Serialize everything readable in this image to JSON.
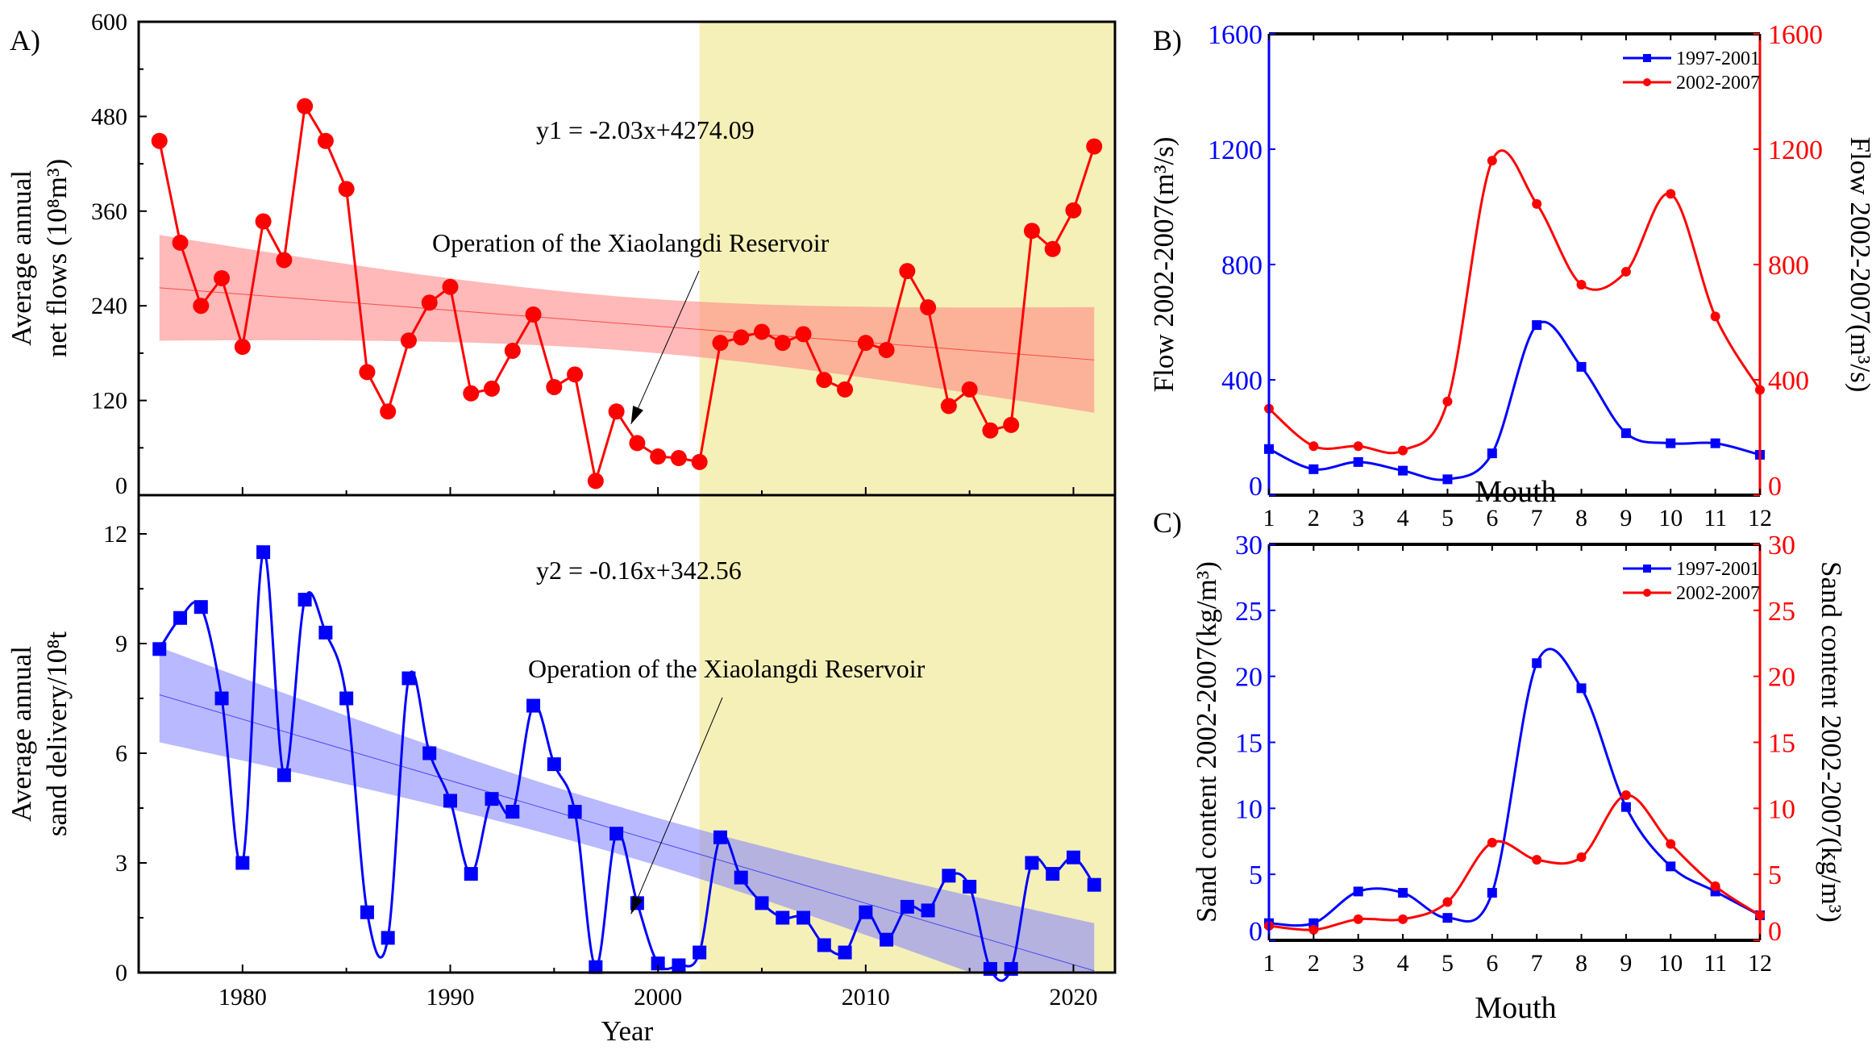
{
  "chart_data": [
    {
      "panel_label": "A)",
      "type": "line",
      "title": "",
      "xlabel": "Year",
      "ylabel": [
        "Average annual",
        "net flows (10⁸m³)"
      ],
      "x": [
        1976,
        1977,
        1978,
        1979,
        1980,
        1981,
        1982,
        1983,
        1984,
        1985,
        1986,
        1987,
        1988,
        1989,
        1990,
        1991,
        1992,
        1993,
        1994,
        1995,
        1996,
        1997,
        1998,
        1999,
        2000,
        2001,
        2002,
        2003,
        2004,
        2005,
        2006,
        2007,
        2008,
        2009,
        2010,
        2011,
        2012,
        2013,
        2014,
        2015,
        2016,
        2017,
        2018,
        2019,
        2020,
        2021
      ],
      "values": [
        449,
        320,
        240,
        275,
        188,
        347,
        298,
        493,
        449,
        388,
        156,
        106,
        196,
        244,
        264,
        129,
        135,
        183,
        229,
        137,
        153,
        18,
        106,
        66,
        49,
        47,
        42,
        193,
        200,
        207,
        193,
        204,
        146,
        134,
        193,
        184,
        284,
        238,
        113,
        134,
        82,
        89,
        335,
        312,
        361,
        442
      ],
      "series_color": "#ff0000",
      "xlim": [
        1975,
        2022
      ],
      "ylim": [
        0,
        600
      ],
      "yticks": [
        0,
        120,
        240,
        360,
        480,
        600
      ],
      "xticks": [
        1980,
        1990,
        2000,
        2010,
        2020
      ],
      "equation": "y1 = -2.03x+4274.09",
      "trend_fit": {
        "x": [
          1976,
          2021
        ],
        "y": [
          262.8,
          171.4
        ]
      },
      "confidence_band_halfwidth": {
        "ends": 67,
        "center": 34
      },
      "band_color": "#ff8080",
      "highlight_period": {
        "from": 2002,
        "to": 2022,
        "color": "#f5f0b8"
      },
      "annotation": "Operation of the Xiaolangdi Reservoir",
      "annotation_target": {
        "x": 1998.7,
        "y": 90
      }
    },
    {
      "type": "line",
      "title": "",
      "xlabel": "Year",
      "xticklabels": [
        "1980",
        "1990",
        "2000",
        "2010",
        "2020"
      ],
      "ylabel": [
        "Average annual",
        "sand delivery/10⁸t"
      ],
      "x": [
        1976,
        1977,
        1978,
        1979,
        1980,
        1981,
        1982,
        1983,
        1984,
        1985,
        1986,
        1987,
        1988,
        1989,
        1990,
        1991,
        1992,
        1993,
        1994,
        1995,
        1996,
        1997,
        1998,
        1999,
        2000,
        2001,
        2002,
        2003,
        2004,
        2005,
        2006,
        2007,
        2008,
        2009,
        2010,
        2011,
        2012,
        2013,
        2014,
        2015,
        2016,
        2017,
        2018,
        2019,
        2020,
        2021
      ],
      "values": [
        8.85,
        9.7,
        10.0,
        7.5,
        3.0,
        11.5,
        5.4,
        10.2,
        9.3,
        7.5,
        1.65,
        0.95,
        8.05,
        6.0,
        4.7,
        2.7,
        4.75,
        4.4,
        7.3,
        5.7,
        4.4,
        0.15,
        3.8,
        1.9,
        0.25,
        0.2,
        0.55,
        3.7,
        2.6,
        1.9,
        1.5,
        1.5,
        0.75,
        0.55,
        1.65,
        0.9,
        1.8,
        1.7,
        2.65,
        2.35,
        0.1,
        0.1,
        3.0,
        2.7,
        3.15,
        2.4
      ],
      "series_color": "#0000ff",
      "xlim": [
        1975,
        2022
      ],
      "ylim": [
        0,
        12
      ],
      "yticks": [
        0,
        3,
        6,
        9,
        12
      ],
      "xticks": [
        1980,
        1990,
        2000,
        2010,
        2020
      ],
      "equation": "y2 = -0.16x+342.56",
      "trend_fit": {
        "x": [
          1976,
          2021
        ],
        "y": [
          7.6,
          0.05
        ]
      },
      "confidence_band_halfwidth": {
        "ends": 1.3,
        "center": 0.65
      },
      "band_color": "#8080ff",
      "highlight_period": {
        "from": 2002,
        "to": 2022,
        "color": "#f5f0b8"
      },
      "annotation": "Operation of the Xiaolangdi Reservoir",
      "annotation_target": {
        "x": 1998.7,
        "y": 1.6
      }
    },
    {
      "panel_label": "B)",
      "type": "line",
      "xlabel": "Mouth",
      "ylabel_left": "Flow 2002-2007(m³/s)",
      "ylabel_right": "Flow 2002-2007(m³/s)",
      "x": [
        1,
        2,
        3,
        4,
        5,
        6,
        7,
        8,
        9,
        10,
        11,
        12
      ],
      "xlim": [
        1,
        12
      ],
      "ylim": [
        0,
        1600
      ],
      "yticks": [
        0,
        400,
        800,
        1200,
        1600
      ],
      "legend_position": "top-right",
      "series": [
        {
          "name": "1997-2001",
          "color": "#0000ff",
          "marker": "square",
          "values": [
            160,
            90,
            115,
            85,
            55,
            145,
            590,
            445,
            215,
            180,
            180,
            140
          ]
        },
        {
          "name": "2002-2007",
          "color": "#ff0000",
          "marker": "circle",
          "values": [
            300,
            170,
            170,
            155,
            325,
            1160,
            1010,
            730,
            775,
            1045,
            620,
            365
          ]
        }
      ]
    },
    {
      "panel_label": "C)",
      "type": "line",
      "xlabel": "Mouth",
      "ylabel_left": "Sand content 2002-2007(kg/m³)",
      "ylabel_right": "Sand content 2002-2007(kg/m³)",
      "x": [
        1,
        2,
        3,
        4,
        5,
        6,
        7,
        8,
        9,
        10,
        11,
        12
      ],
      "xlim": [
        1,
        12
      ],
      "ylim": [
        0,
        30
      ],
      "yticks": [
        0,
        5,
        10,
        15,
        20,
        25,
        30
      ],
      "legend_position": "top-right",
      "series": [
        {
          "name": "1997-2001",
          "color": "#0000ff",
          "marker": "square",
          "values": [
            1.3,
            1.3,
            3.7,
            3.6,
            1.7,
            3.6,
            21.0,
            19.1,
            10.1,
            5.6,
            3.7,
            1.9
          ]
        },
        {
          "name": "2002-2007",
          "color": "#ff0000",
          "marker": "circle",
          "values": [
            1.1,
            0.8,
            1.6,
            1.6,
            2.9,
            7.4,
            6.1,
            6.3,
            11.0,
            7.3,
            4.1,
            1.9
          ]
        }
      ]
    }
  ]
}
